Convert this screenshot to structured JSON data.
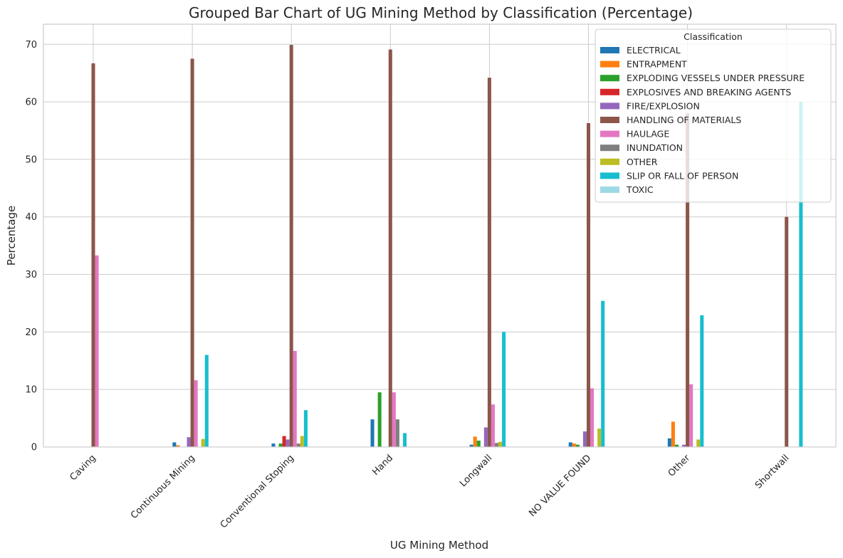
{
  "chart_data": {
    "type": "bar",
    "title": "Grouped Bar Chart of UG Mining Method by Classification (Percentage)",
    "xlabel": "UG Mining Method",
    "ylabel": "Percentage",
    "ylim": [
      0,
      73.5
    ],
    "yticks": [
      0,
      10,
      20,
      30,
      40,
      50,
      60,
      70
    ],
    "grid": true,
    "legend_title": "Classification",
    "legend_position": "top-right",
    "categories": [
      "Caving",
      "Continuous Mining",
      "Conventional Stoping",
      "Hand",
      "Longwall",
      "NO VALUE FOUND",
      "Other",
      "Shortwall"
    ],
    "series": [
      {
        "name": "ELECTRICAL",
        "color": "#1f77b4",
        "values": [
          0,
          0.8,
          0.6,
          4.8,
          0.4,
          0.8,
          1.5,
          0
        ]
      },
      {
        "name": "ENTRAPMENT",
        "color": "#ff7f0e",
        "values": [
          0,
          0.3,
          0,
          0,
          1.8,
          0.6,
          4.4,
          0
        ]
      },
      {
        "name": "EXPLODING VESSELS UNDER PRESSURE",
        "color": "#2ca02c",
        "values": [
          0,
          0,
          0.6,
          9.5,
          1.1,
          0.4,
          0.4,
          0
        ]
      },
      {
        "name": "EXPLOSIVES AND BREAKING AGENTS",
        "color": "#d62728",
        "values": [
          0,
          0,
          1.9,
          0,
          0,
          0,
          0,
          0
        ]
      },
      {
        "name": "FIRE/EXPLOSION",
        "color": "#9467bd",
        "values": [
          0,
          1.7,
          1.3,
          0,
          3.4,
          2.7,
          0.4,
          0
        ]
      },
      {
        "name": "HANDLING OF MATERIALS",
        "color": "#8c564b",
        "values": [
          66.7,
          67.5,
          69.9,
          69.1,
          64.2,
          56.3,
          58.0,
          40.0
        ]
      },
      {
        "name": "HAULAGE",
        "color": "#e377c2",
        "values": [
          33.3,
          11.6,
          16.7,
          9.5,
          7.4,
          10.2,
          10.9,
          0
        ]
      },
      {
        "name": "INUNDATION",
        "color": "#7f7f7f",
        "values": [
          0,
          0,
          0.6,
          4.8,
          0.7,
          0,
          0,
          0
        ]
      },
      {
        "name": "OTHER",
        "color": "#bcbd22",
        "values": [
          0,
          1.4,
          1.9,
          0,
          0.9,
          3.2,
          1.3,
          0
        ]
      },
      {
        "name": "SLIP OR FALL OF PERSON",
        "color": "#17becf",
        "values": [
          0,
          16.0,
          6.4,
          2.4,
          20.0,
          25.4,
          22.9,
          60.0
        ]
      },
      {
        "name": "TOXIC",
        "color": "#9edae5",
        "values": [
          0,
          0,
          0,
          0,
          0,
          0,
          0,
          0
        ]
      }
    ]
  }
}
